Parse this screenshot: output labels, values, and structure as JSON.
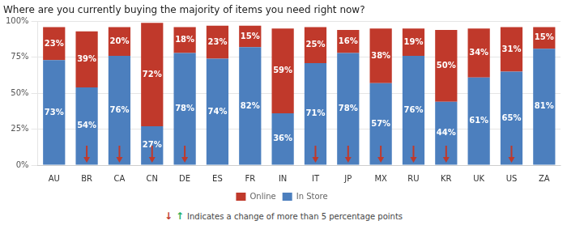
{
  "chart_data": {
    "type": "bar",
    "title": "Where are you currently buying the majority of items you need right now?",
    "categories": [
      "AU",
      "BR",
      "CA",
      "CN",
      "DE",
      "ES",
      "FR",
      "IN",
      "IT",
      "JP",
      "MX",
      "RU",
      "KR",
      "UK",
      "US",
      "ZA"
    ],
    "series": [
      {
        "name": "In Store",
        "color": "#4c7fbe",
        "values": [
          73,
          54,
          76,
          27,
          78,
          74,
          82,
          36,
          71,
          78,
          57,
          76,
          44,
          61,
          65,
          81
        ],
        "value_labels": [
          "73%",
          "54%",
          "76%",
          "27%",
          "78%",
          "74%",
          "82%",
          "36%",
          "71%",
          "78%",
          "57%",
          "76%",
          "44%",
          "61%",
          "65%",
          "81%"
        ]
      },
      {
        "name": "Online",
        "color": "#c0392b",
        "values": [
          23,
          39,
          20,
          72,
          18,
          23,
          15,
          59,
          25,
          16,
          38,
          19,
          50,
          34,
          31,
          15
        ],
        "value_labels": [
          "23%",
          "39%",
          "20%",
          "72%",
          "18%",
          "23%",
          "15%",
          "59%",
          "25%",
          "16%",
          "38%",
          "19%",
          "50%",
          "34%",
          "31%",
          "15%"
        ]
      }
    ],
    "stacked": true,
    "data_labels": true,
    "ylim": [
      0,
      100
    ],
    "yticks": [
      {
        "value": 0,
        "label": "0%"
      },
      {
        "value": 25,
        "label": "25%"
      },
      {
        "value": 50,
        "label": "50%"
      },
      {
        "value": 75,
        "label": "75%"
      },
      {
        "value": 100,
        "label": "100%"
      }
    ],
    "grid": true,
    "legend": "bottom",
    "arrows": {
      "categories": [
        "BR",
        "CA",
        "CN",
        "DE",
        "IT",
        "JP",
        "MX",
        "RU",
        "KR",
        "US"
      ],
      "color": "#c0392b"
    },
    "annotations": [
      {
        "text": "↓",
        "color": "#c0392b"
      },
      {
        "text": "↑",
        "color": "#27ae60"
      },
      {
        "text": "Indicates a change of more than 5 percentage points"
      }
    ]
  }
}
